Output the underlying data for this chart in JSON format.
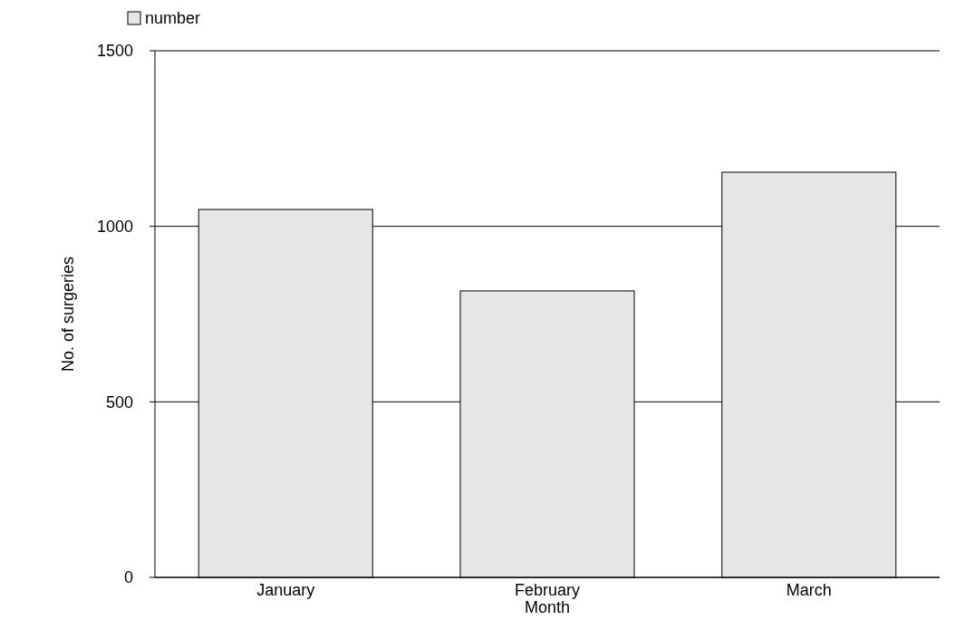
{
  "chart_data": {
    "type": "bar",
    "xlabel": "Month",
    "ylabel": "No. of surgeries",
    "categories": [
      "January",
      "February",
      "March"
    ],
    "series": [
      {
        "name": "number",
        "color": "#e6e6e6",
        "values": [
          1048,
          816,
          1154
        ]
      }
    ],
    "ylim": [
      0,
      1500
    ],
    "yticks": [
      0,
      500,
      1000,
      1500
    ],
    "grid": "y",
    "legend": "top left"
  }
}
